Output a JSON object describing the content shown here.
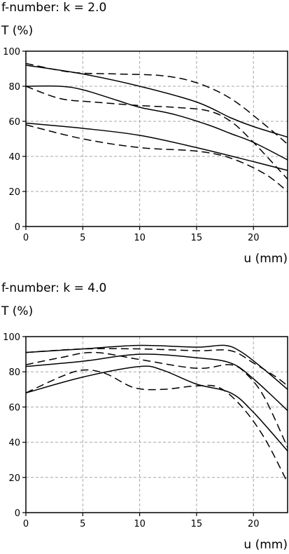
{
  "chart_data": [
    {
      "type": "line",
      "title": "f-number: k = 2.0",
      "ylabel": "T (%)",
      "xlabel": "u (mm)",
      "xlim": [
        0,
        23
      ],
      "ylim": [
        0,
        100
      ],
      "xticks": [
        0,
        5,
        10,
        15,
        20
      ],
      "yticks": [
        0,
        20,
        40,
        60,
        80,
        100
      ],
      "grid": true,
      "series": [
        {
          "style": "solid",
          "x": [
            0,
            5,
            10,
            15,
            18,
            20,
            23
          ],
          "y": [
            92,
            87,
            80,
            71,
            62,
            57,
            51
          ]
        },
        {
          "style": "dashed",
          "x": [
            0,
            4,
            8,
            12,
            15,
            18,
            21,
            23
          ],
          "y": [
            93,
            88,
            87,
            86,
            82,
            73,
            58,
            47
          ]
        },
        {
          "style": "solid",
          "x": [
            0,
            3,
            5,
            8,
            10,
            13,
            16,
            18,
            20,
            23
          ],
          "y": [
            80,
            80,
            78,
            72,
            68,
            64,
            58,
            53,
            48,
            38
          ]
        },
        {
          "style": "dashed",
          "x": [
            0,
            3,
            6,
            10,
            13,
            16,
            18,
            20,
            23
          ],
          "y": [
            80,
            73,
            71,
            69,
            68,
            66,
            60,
            48,
            27
          ]
        },
        {
          "style": "solid",
          "x": [
            0,
            5,
            10,
            15,
            20,
            23
          ],
          "y": [
            59,
            56,
            52,
            45,
            37,
            32
          ]
        },
        {
          "style": "dashed",
          "x": [
            0,
            5,
            10,
            15,
            18,
            21,
            23
          ],
          "y": [
            58,
            50,
            45,
            43,
            39,
            30,
            20
          ]
        }
      ]
    },
    {
      "type": "line",
      "title": "f-number: k = 4.0",
      "ylabel": "T (%)",
      "xlabel": "u (mm)",
      "xlim": [
        0,
        23
      ],
      "ylim": [
        0,
        100
      ],
      "xticks": [
        0,
        5,
        10,
        15,
        20
      ],
      "yticks": [
        0,
        20,
        40,
        60,
        80,
        100
      ],
      "grid": true,
      "series": [
        {
          "style": "solid",
          "x": [
            0,
            5,
            10,
            15,
            17.5,
            19,
            21,
            23
          ],
          "y": [
            91,
            93,
            95,
            94,
            95,
            91,
            81,
            70
          ]
        },
        {
          "style": "dashed",
          "x": [
            0,
            5,
            10,
            15,
            18,
            20,
            22,
            23
          ],
          "y": [
            91,
            93,
            93,
            92,
            92,
            85,
            77,
            72
          ]
        },
        {
          "style": "solid",
          "x": [
            0,
            5,
            10,
            15,
            18,
            20,
            23
          ],
          "y": [
            83,
            86,
            90,
            88,
            85,
            76,
            58
          ]
        },
        {
          "style": "dashed",
          "x": [
            0,
            3,
            6,
            10,
            15,
            18,
            19.5,
            21,
            23
          ],
          "y": [
            84,
            88,
            91,
            87,
            82,
            84,
            78,
            65,
            37
          ]
        },
        {
          "style": "solid",
          "x": [
            0,
            5,
            10,
            12,
            15,
            18,
            20,
            23
          ],
          "y": [
            68,
            77,
            83,
            81,
            73,
            68,
            57,
            35
          ]
        },
        {
          "style": "dashed",
          "x": [
            0,
            3,
            5,
            7,
            9.5,
            12,
            15,
            17,
            19,
            21,
            23
          ],
          "y": [
            68,
            77,
            81,
            79,
            71,
            70,
            72,
            71,
            60,
            42,
            17
          ]
        }
      ]
    }
  ]
}
